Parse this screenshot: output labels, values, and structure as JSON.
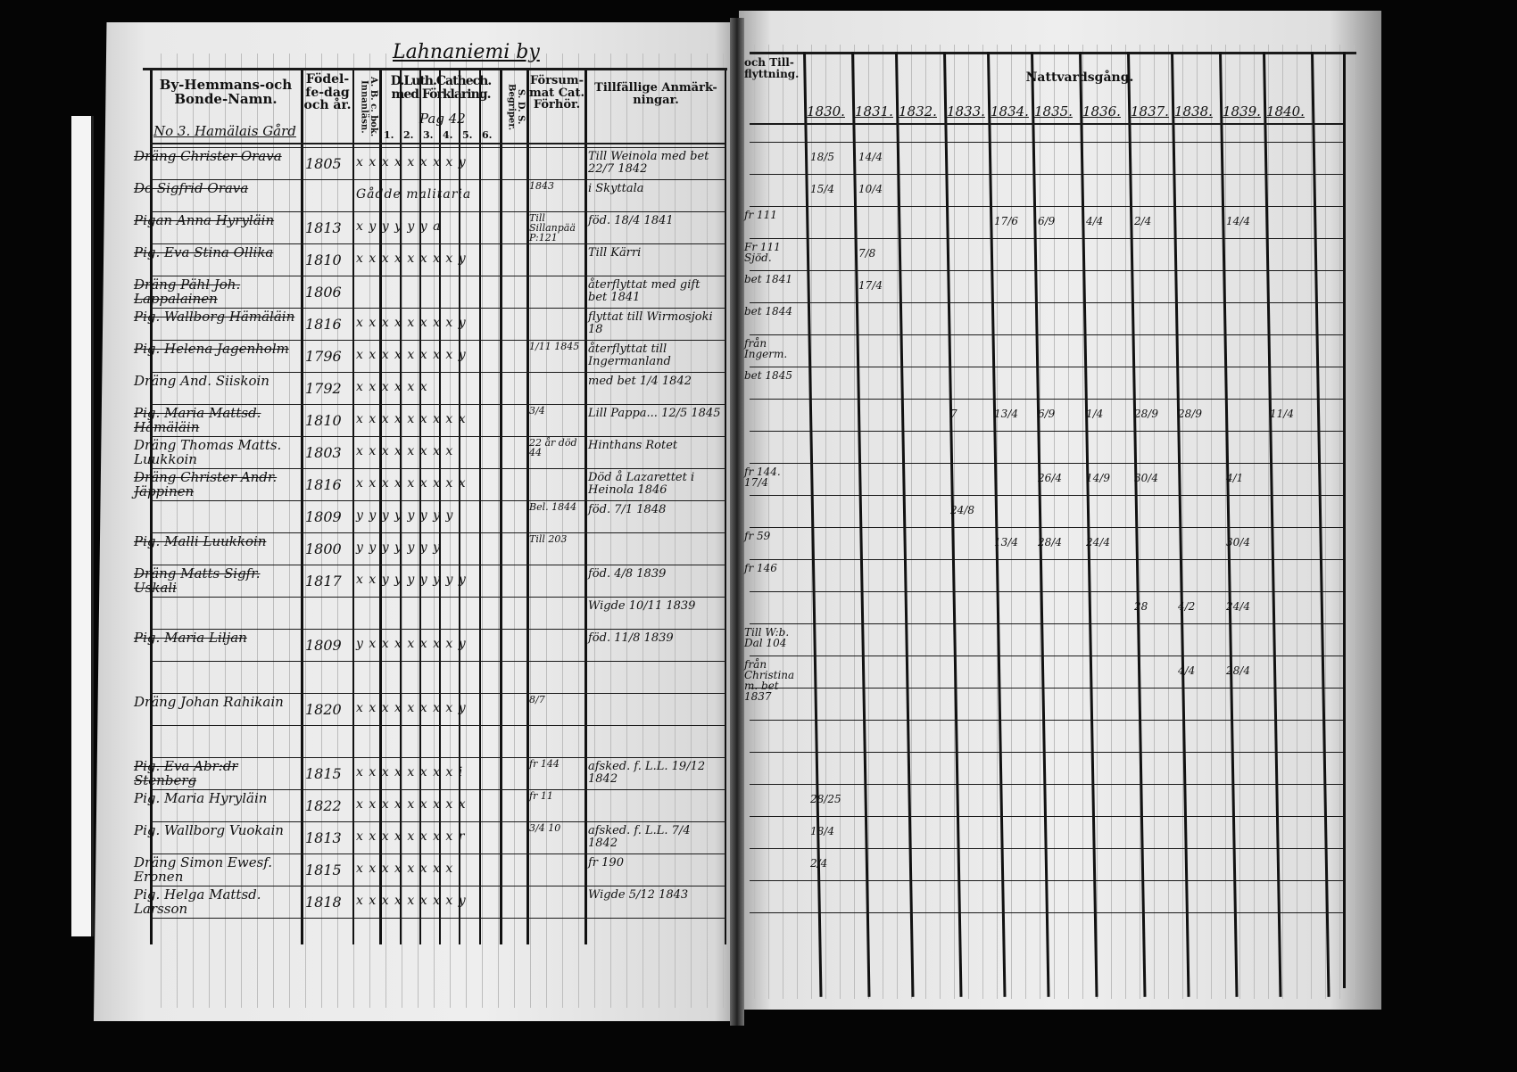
{
  "left_page": {
    "village_title": "Lahnaniemi by",
    "headers": {
      "name": "By-Hemmans-och Bonde-Namn.",
      "birth": "Födel-fe-dag och år.",
      "abc": "A. B. c. bok. Innanläsn.",
      "cathech": "D.Luth.Cathech. med Förklaring.",
      "sds": "S. D. S. Begriper.",
      "forsummat": "Försum-mat Cat. Förhör.",
      "remarks": "Tillfällige Anmärk-ningar."
    },
    "farm_label": "No 3. Hamälais Gård",
    "page_ref": "Pag 42",
    "cathech_numbers": [
      "1.",
      "2.",
      "3.",
      "4.",
      "5.",
      "6."
    ],
    "rows": [
      {
        "name": "Dräng Christer Orava",
        "birth": "1805",
        "marks": "x x x x x x x x y",
        "forsummat": "",
        "remark": "Till Weinola med bet 22/7 1842",
        "struck": true
      },
      {
        "name": "Do Sigfrid Orava",
        "birth": "",
        "marks": "Gådde malitaria",
        "forsummat": "1843",
        "remark": "i Skyttala",
        "struck": true
      },
      {
        "name": "Pigan Anna Hyryläin",
        "birth": "1813",
        "marks": "x y y y y y a",
        "forsummat": "Till Sillanpää P:121",
        "remark": "föd. 18/4 1841",
        "struck": true
      },
      {
        "name": "Pig. Eva Stina Ollika",
        "birth": "1810",
        "marks": "x x x x x x x x y",
        "forsummat": "",
        "remark": "Till Kärri",
        "struck": true
      },
      {
        "name": "Dräng Pähl Joh. Lappalainen",
        "birth": "1806",
        "marks": "",
        "forsummat": "",
        "remark": "återflyttat med gift bet 1841",
        "struck": true
      },
      {
        "name": "Pig. Wallborg Hämäläin",
        "birth": "1816",
        "marks": "x x x x x x x x y",
        "forsummat": "",
        "remark": "flyttat till Wirmosjoki 18",
        "struck": true
      },
      {
        "name": "Pig. Helena Jagenholm",
        "birth": "1796",
        "marks": "x x x x x x x x y",
        "forsummat": "1/11 1845",
        "remark": "återflyttat till Ingermanland",
        "struck": true
      },
      {
        "name": "Dräng And. Siiskoin",
        "birth": "1792",
        "marks": "x x x x x x",
        "forsummat": "",
        "remark": "med bet 1/4 1842",
        "struck": false
      },
      {
        "name": "Pig. Maria Mattsd. Hämäläin",
        "birth": "1810",
        "marks": "x x x x x x x x x",
        "forsummat": "3/4",
        "remark": "Lill Pappa... 12/5 1845",
        "struck": true
      },
      {
        "name": "Dräng Thomas Matts. Luukkoin",
        "birth": "1803",
        "marks": "x x x x x x x x",
        "forsummat": "22 år död 44",
        "remark": "Hinthans Rotet",
        "struck": false
      },
      {
        "name": "Dräng Christer Andr. Jäppinen",
        "birth": "1816",
        "marks": "x x x x x x x x x",
        "forsummat": "",
        "remark": "Död å Lazarettet i Heinola 1846",
        "struck": true
      },
      {
        "name": "",
        "birth": "1809",
        "marks": "y y y y y y y y",
        "forsummat": "Bel. 1844",
        "remark": "föd. 7/1 1848",
        "struck": true
      },
      {
        "name": "Pig. Malli Luukkoin",
        "birth": "1800",
        "marks": "y y y y y y y",
        "forsummat": "Till 203",
        "remark": "",
        "struck": true
      },
      {
        "name": "Dräng Matts Sigfr. Uskali",
        "birth": "1817",
        "marks": "x x y y y y y y y",
        "forsummat": "",
        "remark": "föd. 4/8 1839",
        "struck": true
      },
      {
        "name": "",
        "birth": "",
        "marks": "",
        "forsummat": "",
        "remark": "Wigde 10/11 1839",
        "struck": false
      },
      {
        "name": "Pig. Maria Liljan",
        "birth": "1809",
        "marks": "y x x x x x x x y",
        "forsummat": "",
        "remark": "föd. 11/8 1839",
        "struck": true
      },
      {
        "name": "",
        "birth": "",
        "marks": "",
        "forsummat": "",
        "remark": "",
        "struck": false
      },
      {
        "name": "Dräng Johan Rahikain",
        "birth": "1820",
        "marks": "x x x x x x x x y",
        "forsummat": "8/7",
        "remark": "",
        "struck": false
      },
      {
        "name": "",
        "birth": "",
        "marks": "",
        "forsummat": "",
        "remark": "",
        "struck": false
      },
      {
        "name": "Pig. Eva Abr:dr Stenberg",
        "birth": "1815",
        "marks": "x x x x x x x x i",
        "forsummat": "fr 144",
        "remark": "afsked. f. L.L. 19/12 1842",
        "struck": true
      },
      {
        "name": "Pig. Maria Hyryläin",
        "birth": "1822",
        "marks": "x x x x x x x x x",
        "forsummat": "fr 11",
        "remark": "",
        "struck": false
      },
      {
        "name": "Pig. Wallborg Vuokain",
        "birth": "1813",
        "marks": "x x x x x x x x r",
        "forsummat": "3/4 10",
        "remark": "afsked. f. L.L. 7/4 1842",
        "struck": false
      },
      {
        "name": "Dräng Simon Ewesf. Eronen",
        "birth": "1815",
        "marks": "x x x x x x x x",
        "forsummat": "",
        "remark": "fr 190",
        "struck": false
      },
      {
        "name": "Pig. Helga Mattsd. Larsson",
        "birth": "1818",
        "marks": "x x x x x x x x y",
        "forsummat": "",
        "remark": "Wigde 5/12 1843",
        "struck": false
      }
    ]
  },
  "right_page": {
    "header_moving": "och Till-flyttning.",
    "header_communion": "Nattvardsgång.",
    "years": [
      "1830.",
      "1831.",
      "1832.",
      "1833.",
      "1834.",
      "1835.",
      "1836.",
      "1837.",
      "1838.",
      "1839.",
      "1840."
    ],
    "moving_notes": [
      {
        "row": 2,
        "text": "fr 111"
      },
      {
        "row": 3,
        "text": "Fr 111 Sjöd."
      },
      {
        "row": 4,
        "text": "bet 1841"
      },
      {
        "row": 5,
        "text": "bet 1844"
      },
      {
        "row": 6,
        "text": "från Ingerm."
      },
      {
        "row": 7,
        "text": "bet 1845"
      },
      {
        "row": 10,
        "text": "fr 144. 17/4"
      },
      {
        "row": 12,
        "text": "fr 59"
      },
      {
        "row": 13,
        "text": "fr 146"
      },
      {
        "row": 15,
        "text": "Till W:b. Dal 104"
      },
      {
        "row": 16,
        "text": "från Christina m. bet 1837"
      }
    ],
    "communion_marks": [
      {
        "row": 0,
        "col": 0,
        "text": "18/5"
      },
      {
        "row": 0,
        "col": 1,
        "text": "14/4"
      },
      {
        "row": 1,
        "col": 0,
        "text": "15/4"
      },
      {
        "row": 1,
        "col": 1,
        "text": "10/4"
      },
      {
        "row": 2,
        "col": 4,
        "text": "17/6"
      },
      {
        "row": 2,
        "col": 5,
        "text": "6/9"
      },
      {
        "row": 2,
        "col": 6,
        "text": "4/4"
      },
      {
        "row": 2,
        "col": 7,
        "text": "2/4"
      },
      {
        "row": 2,
        "col": 9,
        "text": "14/4"
      },
      {
        "row": 3,
        "col": 1,
        "text": "7/8"
      },
      {
        "row": 4,
        "col": 1,
        "text": "17/4"
      },
      {
        "row": 8,
        "col": 3,
        "text": "7"
      },
      {
        "row": 8,
        "col": 4,
        "text": "13/4"
      },
      {
        "row": 8,
        "col": 5,
        "text": "6/9"
      },
      {
        "row": 8,
        "col": 6,
        "text": "1/4"
      },
      {
        "row": 8,
        "col": 7,
        "text": "28/9"
      },
      {
        "row": 8,
        "col": 8,
        "text": "28/9"
      },
      {
        "row": 8,
        "col": 10,
        "text": "11/4"
      },
      {
        "row": 10,
        "col": 5,
        "text": "26/4"
      },
      {
        "row": 10,
        "col": 6,
        "text": "14/9"
      },
      {
        "row": 10,
        "col": 7,
        "text": "30/4"
      },
      {
        "row": 10,
        "col": 9,
        "text": "4/1"
      },
      {
        "row": 11,
        "col": 3,
        "text": "24/8"
      },
      {
        "row": 12,
        "col": 4,
        "text": "13/4"
      },
      {
        "row": 12,
        "col": 5,
        "text": "28/4"
      },
      {
        "row": 12,
        "col": 6,
        "text": "24/4"
      },
      {
        "row": 12,
        "col": 9,
        "text": "30/4"
      },
      {
        "row": 14,
        "col": 7,
        "text": "28"
      },
      {
        "row": 14,
        "col": 8,
        "text": "4/2"
      },
      {
        "row": 14,
        "col": 9,
        "text": "24/4"
      },
      {
        "row": 16,
        "col": 8,
        "text": "4/4"
      },
      {
        "row": 16,
        "col": 9,
        "text": "28/4"
      },
      {
        "row": 20,
        "col": 0,
        "text": "28/25"
      },
      {
        "row": 21,
        "col": 0,
        "text": "18/4"
      },
      {
        "row": 22,
        "col": 0,
        "text": "2/4"
      }
    ]
  }
}
